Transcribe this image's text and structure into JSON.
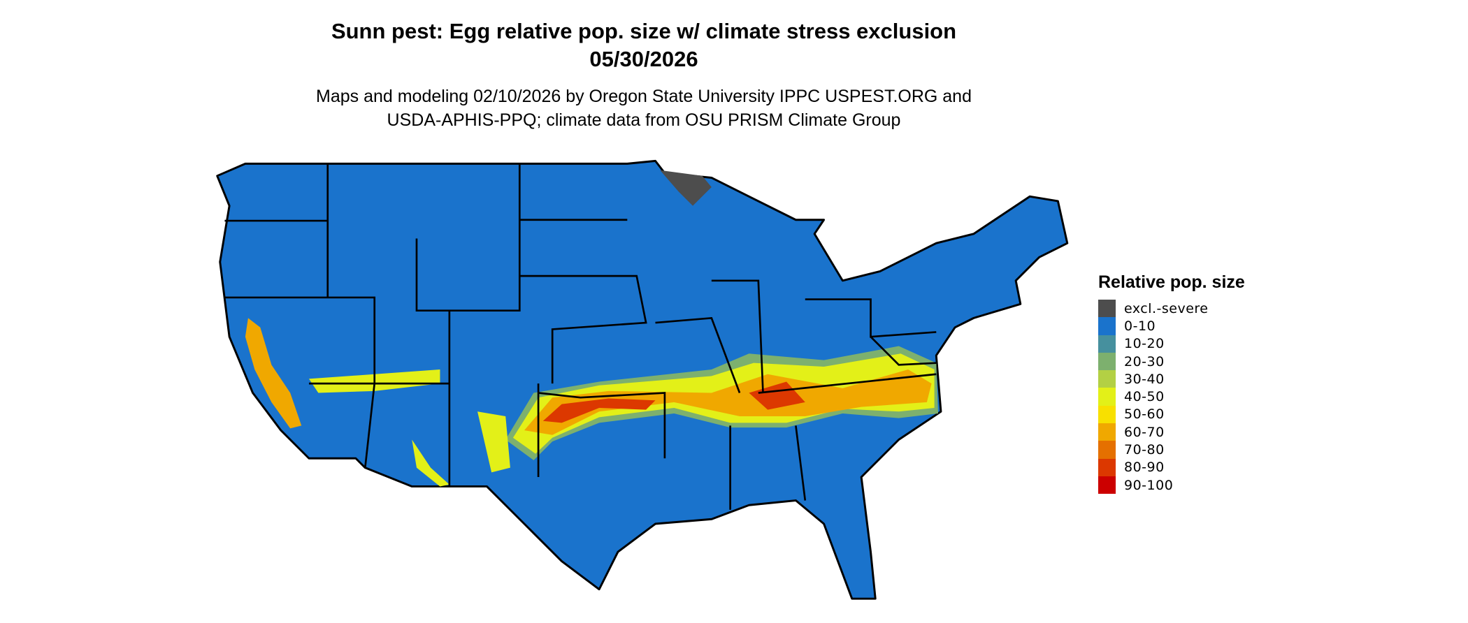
{
  "title": {
    "line1": "Sunn pest: Egg relative pop. size w/ climate stress exclusion",
    "line2": "05/30/2026"
  },
  "subtitle": {
    "line1": "Maps and modeling 02/10/2026 by Oregon State University IPPC USPEST.ORG and",
    "line2": "USDA-APHIS-PPQ; climate data from OSU PRISM Climate Group"
  },
  "map": {
    "region": "Contiguous United States",
    "base_color": "#1a73cc",
    "border_color": "#000000"
  },
  "legend": {
    "title": "Relative pop. size",
    "items": [
      {
        "label": "excl.-severe",
        "color": "#4d4d4d"
      },
      {
        "label": "0-10",
        "color": "#1a73cc"
      },
      {
        "label": "10-20",
        "color": "#46909e"
      },
      {
        "label": "20-30",
        "color": "#7db06e"
      },
      {
        "label": "30-40",
        "color": "#b3d044"
      },
      {
        "label": "40-50",
        "color": "#e3f018"
      },
      {
        "label": "50-60",
        "color": "#f8e000"
      },
      {
        "label": "60-70",
        "color": "#f0a800"
      },
      {
        "label": "70-80",
        "color": "#e57000"
      },
      {
        "label": "80-90",
        "color": "#dc3800"
      },
      {
        "label": "90-100",
        "color": "#cc0000"
      }
    ]
  }
}
